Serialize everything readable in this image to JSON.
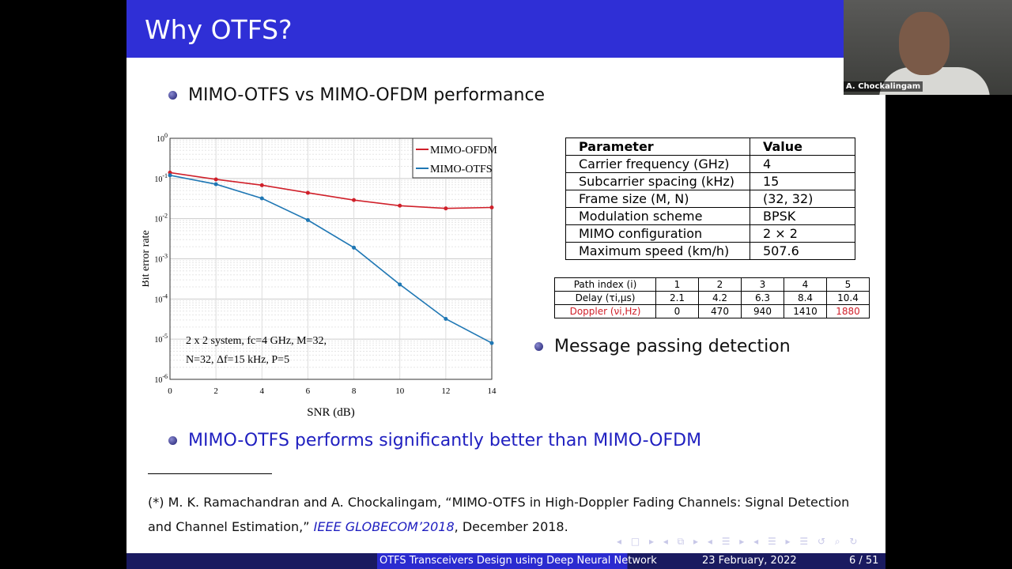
{
  "slide": {
    "title": "Why OTFS?",
    "bullet1": "MIMO-OTFS vs MIMO-OFDM performance",
    "bullet2": "Message passing detection",
    "bullet3": "MIMO-OTFS performs significantly better than MIMO-OFDM",
    "param_table": {
      "headers": [
        "Parameter",
        "Value"
      ],
      "rows": [
        [
          "Carrier frequency (GHz)",
          "4"
        ],
        [
          "Subcarrier spacing (kHz)",
          "15"
        ],
        [
          "Frame size (M, N)",
          "(32, 32)"
        ],
        [
          "Modulation scheme",
          "BPSK"
        ],
        [
          "MIMO configuration",
          "2 × 2"
        ],
        [
          "Maximum speed (km/h)",
          "507.6"
        ]
      ]
    },
    "path_table": {
      "rows": [
        [
          "Path index (i)",
          "1",
          "2",
          "3",
          "4",
          "5"
        ],
        [
          "Delay (τi,μs)",
          "2.1",
          "4.2",
          "6.3",
          "8.4",
          "10.4"
        ],
        [
          "Doppler (νi,Hz)",
          "0",
          "470",
          "940",
          "1410",
          "1880"
        ]
      ]
    },
    "citation_a": "(*) M. K. Ramachandran and A. Chockalingam, “MIMO-OTFS in High-Doppler Fading Channels: Signal Detection and Channel Estimation,”",
    "citation_venue": "IEEE GLOBECOM’2018",
    "citation_b": ", December 2018.",
    "footer": {
      "talk": "OTFS Transceivers Design using Deep Neural Network",
      "date": "23 February, 2022",
      "page": "6 / 51"
    },
    "nav_symbols": "◂ □ ▸ ◂ ⧉ ▸ ◂ ☰ ▸ ◂ ☰ ▸ ☰ ↺ ⌕ ↻"
  },
  "video": {
    "participant": "A. Chockalingam"
  },
  "colors": {
    "header": "#2f2fd6",
    "ofdm": "#d0202a",
    "otfs": "#1f77b4",
    "emphasis": "#2020c0"
  },
  "chart_data": {
    "type": "line",
    "xlabel": "SNR (dB)",
    "ylabel": "Bit error rate",
    "x": [
      0,
      2,
      4,
      6,
      8,
      10,
      12,
      14
    ],
    "xlim": [
      0,
      14
    ],
    "ylim": [
      1e-06,
      1
    ],
    "yscale": "log",
    "grid": true,
    "legend": "top-right",
    "xticks": [
      "0",
      "2",
      "4",
      "6",
      "8",
      "10",
      "12",
      "14"
    ],
    "yticks": [
      "10^0",
      "10^-1",
      "10^-2",
      "10^-3",
      "10^-4",
      "10^-5",
      "10^-6"
    ],
    "annotation": [
      "2 x 2 system, fc=4 GHz, M=32,",
      "N=32, Δf=15 kHz, P=5"
    ],
    "series": [
      {
        "name": "MIMO-OFDM",
        "color": "#d0202a",
        "values": [
          0.14,
          0.095,
          0.068,
          0.044,
          0.029,
          0.021,
          0.018,
          0.019
        ]
      },
      {
        "name": "MIMO-OTFS",
        "color": "#1f77b4",
        "values": [
          0.12,
          0.072,
          0.032,
          0.0092,
          0.0019,
          0.00023,
          3.2e-05,
          8e-06
        ]
      }
    ]
  }
}
